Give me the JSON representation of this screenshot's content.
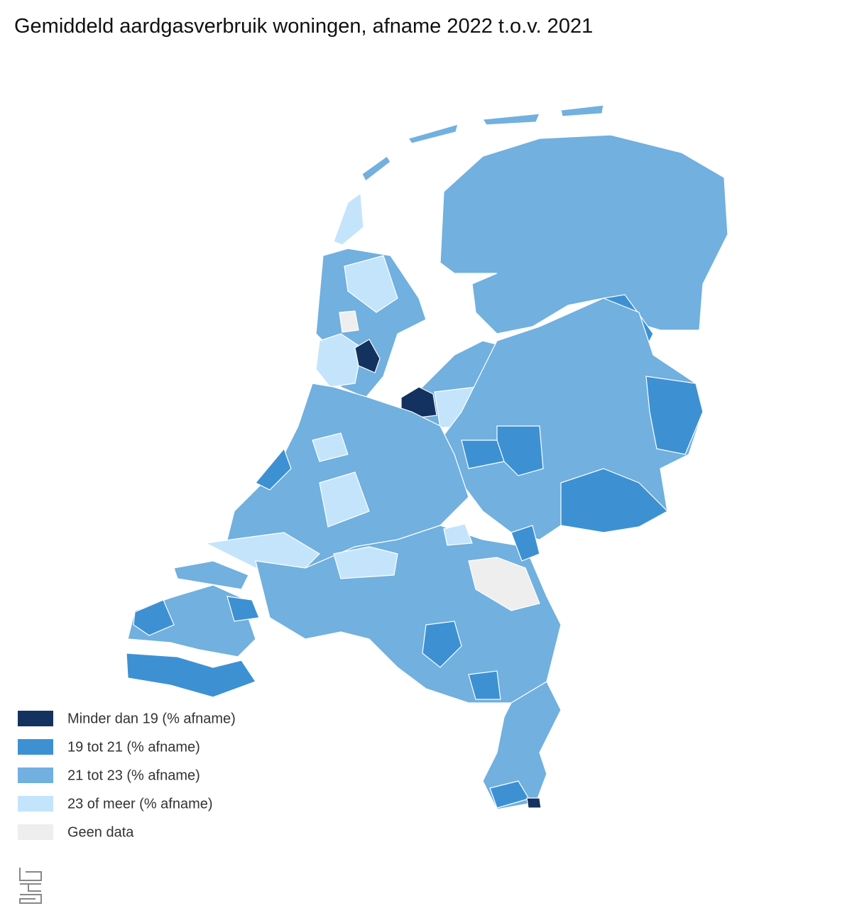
{
  "title": "Gemiddeld aardgasverbruik woningen, afname 2022 t.o.v. 2021",
  "legend": [
    {
      "label": "Minder dan 19 (% afname)",
      "color": "#14325f"
    },
    {
      "label": "19 tot 21 (% afname)",
      "color": "#3d91d3"
    },
    {
      "label": "21 tot 23 (% afname)",
      "color": "#71b0df"
    },
    {
      "label": "23 of meer (% afname)",
      "color": "#c4e4fb"
    },
    {
      "label": "Geen data",
      "color": "#eeeeee"
    }
  ]
}
